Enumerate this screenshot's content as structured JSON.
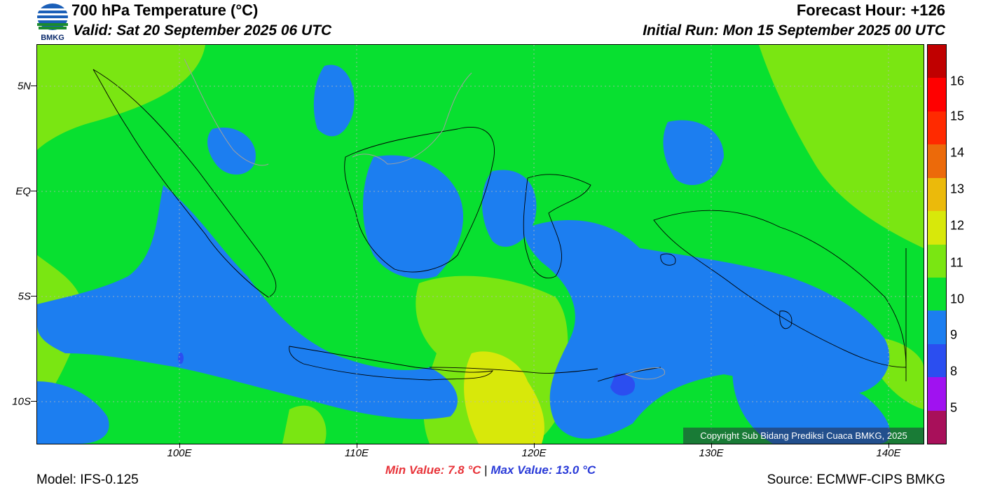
{
  "header": {
    "title": "700 hPa Temperature (°C)",
    "valid": "Valid: Sat 20 September 2025 06 UTC",
    "forecast_hour": "Forecast Hour: +126",
    "initial_run": "Initial Run: Mon 15 September 2025 00 UTC",
    "logo_text": "BMKG"
  },
  "map": {
    "lat_labels": [
      "5N",
      "EQ",
      "5S",
      "10S"
    ],
    "lon_labels": [
      "100E",
      "110E",
      "120E",
      "130E",
      "140E"
    ],
    "background_color": "#08e030",
    "copyright": "Copyright Sub Bidang Prediksi Cuaca BMKG, 2025"
  },
  "colorbar": {
    "labels": [
      "16",
      "15",
      "14",
      "13",
      "12",
      "11",
      "10",
      "9",
      "8",
      "5"
    ],
    "colors": [
      "#c00000",
      "#ff0000",
      "#ff2a00",
      "#ec6a0a",
      "#ebba0b",
      "#d8e80a",
      "#7ae612",
      "#08e030",
      "#1c7ef0",
      "#2b4ef0",
      "#a012f0",
      "#a8105a"
    ]
  },
  "stats": {
    "min": "Min Value: 7.8 °C",
    "separator": "|",
    "max": "Max Value: 13.0 °C"
  },
  "footer": {
    "model": "Model: IFS-0.125",
    "source": "Source: ECMWF-CIPS BMKG"
  }
}
